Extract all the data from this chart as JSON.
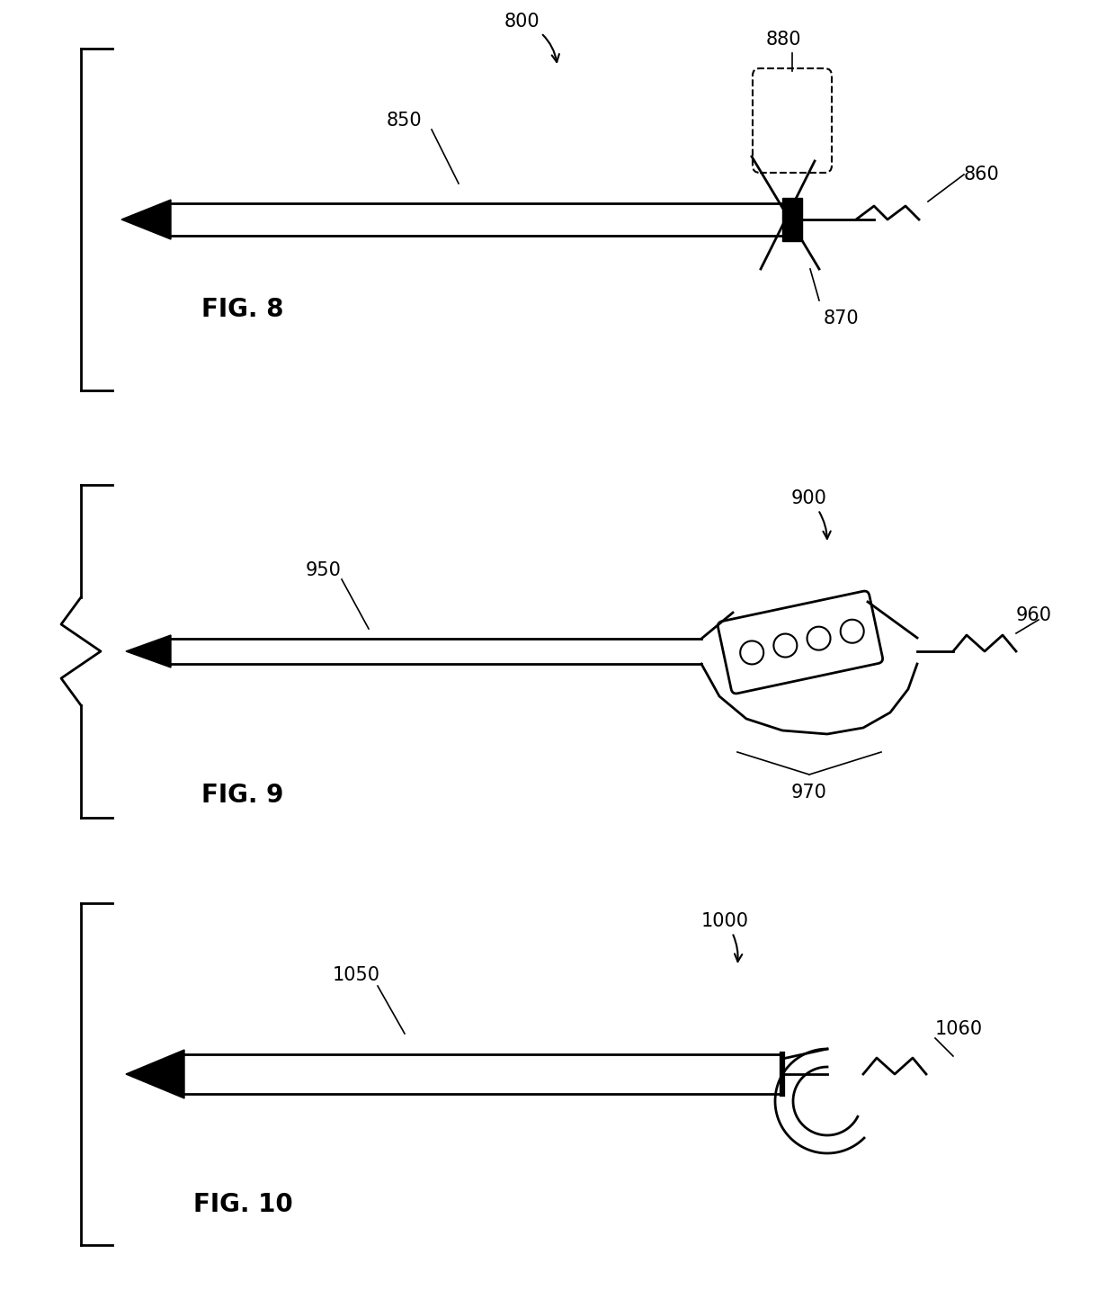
{
  "bg_color": "#ffffff",
  "lc": "#000000",
  "fig8_label": "FIG. 8",
  "fig9_label": "FIG. 9",
  "fig10_label": "FIG. 10",
  "font_size_label": 15,
  "font_size_fig": 20,
  "lw_thin": 1.2,
  "lw_med": 2.0,
  "lw_thick": 3.5
}
